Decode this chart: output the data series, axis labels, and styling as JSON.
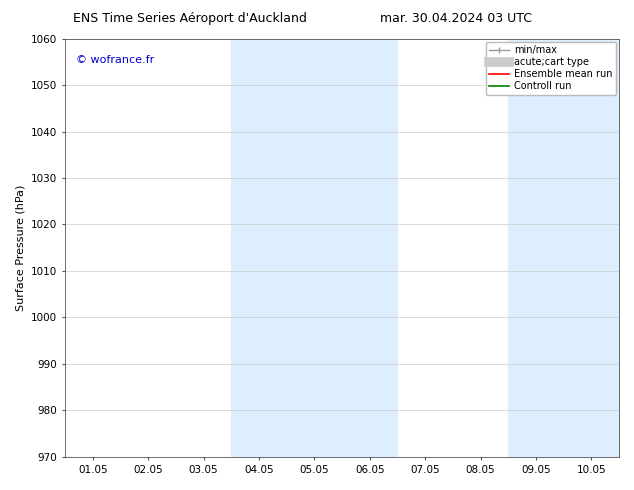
{
  "title_left": "ENS Time Series Aéroport d'Auckland",
  "title_right": "mar. 30.04.2024 03 UTC",
  "ylabel": "Surface Pressure (hPa)",
  "watermark": "© wofrance.fr",
  "watermark_color": "#0000cc",
  "ylim": [
    970,
    1060
  ],
  "yticks": [
    970,
    980,
    990,
    1000,
    1010,
    1020,
    1030,
    1040,
    1050,
    1060
  ],
  "xtick_labels": [
    "01.05",
    "02.05",
    "03.05",
    "04.05",
    "05.05",
    "06.05",
    "07.05",
    "08.05",
    "09.05",
    "10.05"
  ],
  "xtick_positions": [
    1,
    2,
    3,
    4,
    5,
    6,
    7,
    8,
    9,
    10
  ],
  "xlim": [
    0.5,
    10.5
  ],
  "shaded_bands": [
    {
      "xmin": 3.5,
      "xmax": 6.5,
      "color": "#ddeeff"
    },
    {
      "xmin": 8.5,
      "xmax": 10.5,
      "color": "#ddeeff"
    }
  ],
  "bg_color": "#ffffff",
  "grid_color": "#cccccc",
  "title_fontsize": 9,
  "tick_fontsize": 7.5,
  "ylabel_fontsize": 8,
  "watermark_fontsize": 8,
  "legend_fontsize": 7
}
